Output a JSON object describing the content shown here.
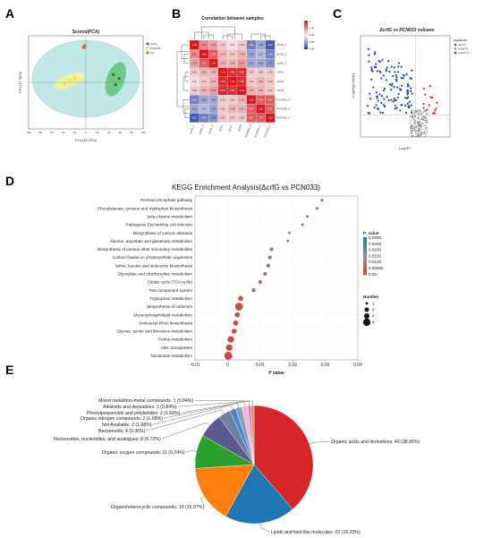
{
  "panels": {
    "A": {
      "label": "A",
      "title": "Scores(PCA)",
      "xlabel": "PC1(38.29%)",
      "ylabel": "PC2(17.30%)",
      "xticks": [
        "-100",
        "-80",
        "-60",
        "-40",
        "-20",
        "0",
        "20",
        "40",
        "60",
        "80",
        "100"
      ],
      "legend": [
        "ΔcrfG",
        "PCN033",
        "QC"
      ],
      "colors": {
        "g1": "#2e9e4b",
        "g2": "#ffff66",
        "qc": "#e3722c",
        "ellipse": "#bfe8e6"
      },
      "points": {
        "g1": [
          [
            48,
            10
          ],
          [
            52,
            -3
          ],
          [
            58,
            5
          ]
        ],
        "g2": [
          [
            -38,
            -2
          ],
          [
            -28,
            2
          ],
          [
            -20,
            5
          ]
        ],
        "qc": [
          [
            -4,
            45
          ],
          [
            -2,
            47
          ]
        ]
      }
    },
    "B": {
      "label": "B",
      "title": "Correlation between samples",
      "row_labels": [
        "ΔcrfG_1",
        "ΔcrfG_2",
        "ΔcrfG_3",
        "QC01",
        "QC02",
        "QC03",
        "PCN033_3",
        "PCN033_1",
        "PCN033_2"
      ],
      "col_labels": [
        "ΔcrfG_1",
        "ΔcrfG_2",
        "ΔcrfG_3",
        "QC01",
        "QC02",
        "QC03",
        "PCN033_3",
        "PCN033_1",
        "PCN033_2"
      ],
      "matrix": [
        [
          1.0,
          0.95,
          0.94,
          0.92,
          0.91,
          0.92,
          0.84,
          0.86,
          0.82
        ],
        [
          0.95,
          1.0,
          0.97,
          0.93,
          0.92,
          0.93,
          0.86,
          0.87,
          0.84
        ],
        [
          0.94,
          0.97,
          1.0,
          0.93,
          0.93,
          0.94,
          0.86,
          0.86,
          0.85
        ],
        [
          0.92,
          0.93,
          0.93,
          1.0,
          0.99,
          0.99,
          0.92,
          0.92,
          0.92
        ],
        [
          0.91,
          0.92,
          0.93,
          0.99,
          1.0,
          0.99,
          0.92,
          0.93,
          0.92
        ],
        [
          0.92,
          0.93,
          0.94,
          0.99,
          0.99,
          1.0,
          0.93,
          0.93,
          0.92
        ],
        [
          0.84,
          0.86,
          0.86,
          0.92,
          0.92,
          0.93,
          1.0,
          0.97,
          0.97
        ],
        [
          0.86,
          0.87,
          0.86,
          0.92,
          0.93,
          0.93,
          0.97,
          1.0,
          0.97
        ],
        [
          0.82,
          0.84,
          0.85,
          0.92,
          0.92,
          0.92,
          0.97,
          0.97,
          1.0
        ]
      ],
      "scale_ticks": [
        "1",
        "0.95",
        "0.90",
        "0.85",
        "0.80"
      ]
    },
    "C": {
      "label": "C",
      "title": "ΔcrfG vs PCN033 volcano",
      "xlabel": "Log2FC",
      "ylabel": "-Log10(p-value)",
      "legend_title": "Significant",
      "legend_items": [
        "up(??)",
        "insig(??)",
        "down(??)"
      ],
      "colors": {
        "up": "#d62728",
        "insig": "#888888",
        "down": "#1f3fbf"
      }
    },
    "D": {
      "label": "D",
      "title": "KEGG Enrichment Analysis(ΔcrfG vs PCN033)",
      "xlabel": "P value",
      "legend_pvalue_title": "P_value",
      "legend_pvalue_ticks": [
        "0.0300",
        "0.0250",
        "0.0200",
        "0.0150",
        "0.0100",
        "0.00500",
        "0.00"
      ],
      "legend_number_title": "Number",
      "legend_number_ticks": [
        "1",
        "3",
        "4",
        "6"
      ]
    },
    "E": {
      "label": "E"
    }
  },
  "chart_data": [
    {
      "type": "scatter",
      "panel": "D",
      "title": "KEGG Enrichment Analysis(ΔcrfG vs PCN033)",
      "xlabel": "P value",
      "ylabel": "",
      "xlim": [
        -0.01,
        0.04
      ],
      "xticks": [
        "-0.01",
        "0",
        "0.01",
        "0.02",
        "0.03",
        "0.04"
      ],
      "categories": [
        "Pentose phosphate pathway",
        "Phenylalanine, tyrosine and tryptophan biosynthesis",
        "beta-Alanine metabolism",
        "Pathogenic Escherichia coli infection",
        "Biosynthesis of various alkaloids",
        "Alanine, aspartate and glutamate metabolism",
        "Biosynthesis of various other secondary metabolites",
        "Carbon fixation in photosynthetic organisms",
        "Valine, leucine and isoleucine biosynthesis",
        "Glyoxylate and dicarboxylate metabolism",
        "Citrate cycle (TCA cycle)",
        "Two-component system",
        "Tryptophan metabolism",
        "Biosynthesis of cofactors",
        "Glycerophospholipid metabolism",
        "Aminoacyl-tRNA biosynthesis",
        "Glycine, serine and threonine metabolism",
        "Purine metabolism",
        "ABC transporters",
        "Nucleotide metabolism"
      ],
      "values": [
        0.029,
        0.0275,
        0.0245,
        0.023,
        0.019,
        0.0185,
        0.0135,
        0.013,
        0.0125,
        0.0115,
        0.01,
        0.008,
        0.004,
        0.0035,
        0.003,
        0.0025,
        0.002,
        0.001,
        0.0005,
        0.0002
      ],
      "number": [
        1,
        1,
        1,
        1,
        1,
        1,
        2,
        2,
        2,
        2,
        2,
        2,
        3,
        5,
        3,
        3,
        3,
        4,
        4,
        5
      ]
    },
    {
      "type": "pie",
      "panel": "E",
      "categories": [
        "Organic acids and derivatives: 46 (38.66%)",
        "Lipids and lipid-like molecules: 23 (19.33%)",
        "Organoheterocyclic compounds: 19 (15.97%)",
        "Organic oxygen compounds: 11 (9.24%)",
        "Nucleosides, nucleotides, and analogues: 8 (6.72%)",
        "Benzenoids: 4 (3.36%)",
        "Not Available: 2 (1.68%)",
        "Organic nitrogen compounds: 2 (1.68%)",
        "Phenylpropanoids and polyketides: 2 (1.68%)",
        "Alkaloids and derivatives: 1 (0.84%)",
        "Mixed metal/non-metal compounds: 1 (0.84%)"
      ],
      "values": [
        46,
        23,
        19,
        11,
        8,
        4,
        2,
        2,
        2,
        1,
        1
      ],
      "colors": [
        "#d62728",
        "#1f77b4",
        "#ff7f0e",
        "#2ca02c",
        "#5b5a8f",
        "#6f7ea3",
        "#4a86c5",
        "#86a0b8",
        "#f7b6d2",
        "#e377c2",
        "#c49c5a"
      ]
    }
  ]
}
